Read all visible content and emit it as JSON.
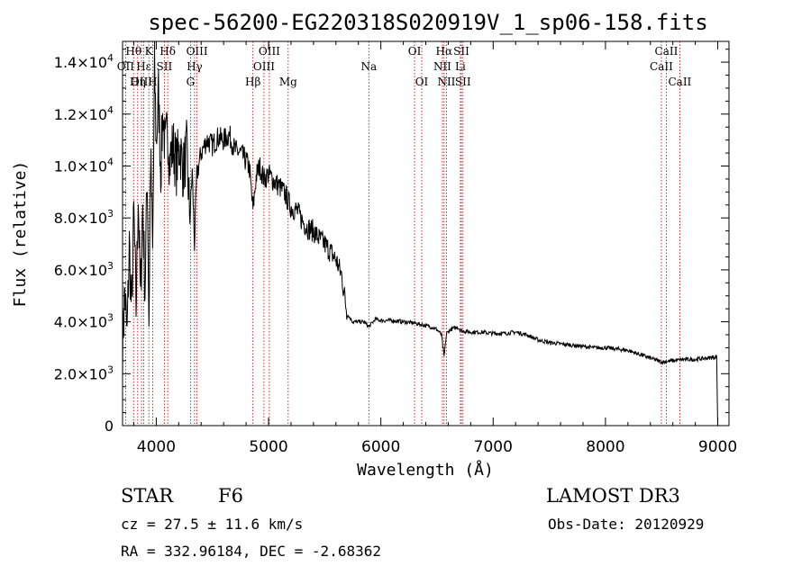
{
  "chart_data": {
    "type": "line",
    "title": "spec-56200-EG220318S020919V_1_sp06-158.fits",
    "xlabel": "Wavelength (Å)",
    "ylabel": "Flux (relative)",
    "xlim": [
      3700,
      9100
    ],
    "ylim": [
      0,
      14800
    ],
    "xticks": [
      4000,
      5000,
      6000,
      7000,
      8000,
      9000
    ],
    "yticks": [
      {
        "value": 0,
        "mant": "0",
        "exp": ""
      },
      {
        "value": 2000,
        "mant": "2.0×10",
        "exp": "3"
      },
      {
        "value": 4000,
        "mant": "4.0×10",
        "exp": "3"
      },
      {
        "value": 6000,
        "mant": "6.0×10",
        "exp": "3"
      },
      {
        "value": 8000,
        "mant": "8.0×10",
        "exp": "3"
      },
      {
        "value": 10000,
        "mant": "1.0×10",
        "exp": "4"
      },
      {
        "value": 12000,
        "mant": "1.2×10",
        "exp": "4"
      },
      {
        "value": 14000,
        "mant": "1.4×10",
        "exp": "4"
      }
    ],
    "series": [
      {
        "name": "spectrum",
        "points": [
          [
            3700,
            3000
          ],
          [
            3720,
            5200
          ],
          [
            3740,
            3400
          ],
          [
            3760,
            7000
          ],
          [
            3780,
            4300
          ],
          [
            3800,
            8200
          ],
          [
            3820,
            4500
          ],
          [
            3840,
            9000
          ],
          [
            3860,
            4800
          ],
          [
            3880,
            8500
          ],
          [
            3900,
            5200
          ],
          [
            3920,
            9800
          ],
          [
            3935,
            4000
          ],
          [
            3950,
            10500
          ],
          [
            3968,
            6500
          ],
          [
            3985,
            13800
          ],
          [
            4000,
            10800
          ],
          [
            4020,
            12800
          ],
          [
            4040,
            9800
          ],
          [
            4060,
            12200
          ],
          [
            4080,
            10500
          ],
          [
            4100,
            11500
          ],
          [
            4120,
            10200
          ],
          [
            4150,
            10800
          ],
          [
            4180,
            10000
          ],
          [
            4210,
            10800
          ],
          [
            4240,
            9800
          ],
          [
            4270,
            10600
          ],
          [
            4300,
            8000
          ],
          [
            4320,
            9800
          ],
          [
            4340,
            7000
          ],
          [
            4360,
            9600
          ],
          [
            4400,
            10500
          ],
          [
            4450,
            11000
          ],
          [
            4500,
            10800
          ],
          [
            4550,
            11100
          ],
          [
            4600,
            11000
          ],
          [
            4650,
            11200
          ],
          [
            4700,
            10600
          ],
          [
            4750,
            10500
          ],
          [
            4800,
            10200
          ],
          [
            4830,
            9900
          ],
          [
            4861,
            8300
          ],
          [
            4890,
            9600
          ],
          [
            4920,
            10000
          ],
          [
            4960,
            9500
          ],
          [
            5000,
            9700
          ],
          [
            5050,
            9400
          ],
          [
            5100,
            9200
          ],
          [
            5150,
            8900
          ],
          [
            5200,
            8400
          ],
          [
            5250,
            8300
          ],
          [
            5300,
            7900
          ],
          [
            5350,
            7600
          ],
          [
            5400,
            7500
          ],
          [
            5450,
            7200
          ],
          [
            5500,
            7000
          ],
          [
            5550,
            6700
          ],
          [
            5600,
            6400
          ],
          [
            5650,
            5800
          ],
          [
            5700,
            4300
          ],
          [
            5750,
            4000
          ],
          [
            5800,
            4000
          ],
          [
            5850,
            4000
          ],
          [
            5893,
            3800
          ],
          [
            5950,
            4100
          ],
          [
            6000,
            4050
          ],
          [
            6100,
            4050
          ],
          [
            6200,
            4000
          ],
          [
            6300,
            3950
          ],
          [
            6400,
            3850
          ],
          [
            6450,
            3800
          ],
          [
            6500,
            3700
          ],
          [
            6540,
            3500
          ],
          [
            6563,
            2650
          ],
          [
            6585,
            3550
          ],
          [
            6620,
            3700
          ],
          [
            6680,
            3800
          ],
          [
            6720,
            3650
          ],
          [
            6800,
            3600
          ],
          [
            6900,
            3600
          ],
          [
            7000,
            3550
          ],
          [
            7100,
            3550
          ],
          [
            7200,
            3600
          ],
          [
            7300,
            3500
          ],
          [
            7400,
            3300
          ],
          [
            7500,
            3200
          ],
          [
            7600,
            3150
          ],
          [
            7700,
            3100
          ],
          [
            7800,
            3050
          ],
          [
            7900,
            3000
          ],
          [
            8000,
            3000
          ],
          [
            8100,
            2950
          ],
          [
            8200,
            2900
          ],
          [
            8300,
            2750
          ],
          [
            8400,
            2600
          ],
          [
            8500,
            2450
          ],
          [
            8600,
            2500
          ],
          [
            8700,
            2550
          ],
          [
            8800,
            2550
          ],
          [
            8900,
            2600
          ],
          [
            8990,
            2650
          ],
          [
            9000,
            0
          ]
        ]
      }
    ],
    "line_markers": [
      {
        "label": "Hθ",
        "wavelength": 3798,
        "row": 1
      },
      {
        "label": "OII",
        "wavelength": 3727,
        "row": 2
      },
      {
        "label": "OIII",
        "wavelength": 3869,
        "row": 3
      },
      {
        "label": "K",
        "wavelength": 3934,
        "row": 1
      },
      {
        "label": "Hε",
        "wavelength": 3889,
        "row": 2
      },
      {
        "label": "Hη",
        "wavelength": 3835,
        "row": 3
      },
      {
        "label": "H",
        "wavelength": 3968,
        "row": 3
      },
      {
        "label": "SII",
        "wavelength": 4072,
        "row": 2
      },
      {
        "label": "Hδ",
        "wavelength": 4102,
        "row": 1
      },
      {
        "label": "OIII",
        "wavelength": 4363,
        "row": 1
      },
      {
        "label": "Hγ",
        "wavelength": 4341,
        "row": 2
      },
      {
        "label": "G",
        "wavelength": 4305,
        "row": 3
      },
      {
        "label": "Hβ",
        "wavelength": 4861,
        "row": 3
      },
      {
        "label": "OIII",
        "wavelength": 5007,
        "row": 1
      },
      {
        "label": "OIII",
        "wavelength": 4959,
        "row": 2
      },
      {
        "label": "Mg",
        "wavelength": 5175,
        "row": 3
      },
      {
        "label": "Na",
        "wavelength": 5893,
        "row": 2
      },
      {
        "label": "OI",
        "wavelength": 6300,
        "row": 1
      },
      {
        "label": "OI",
        "wavelength": 6364,
        "row": 3
      },
      {
        "label": "Hα",
        "wavelength": 6563,
        "row": 1
      },
      {
        "label": "NII",
        "wavelength": 6548,
        "row": 2
      },
      {
        "label": "NII",
        "wavelength": 6584,
        "row": 3
      },
      {
        "label": "SII",
        "wavelength": 6717,
        "row": 1
      },
      {
        "label": "Li",
        "wavelength": 6708,
        "row": 2
      },
      {
        "label": "SII",
        "wavelength": 6731,
        "row": 3
      },
      {
        "label": "CaII",
        "wavelength": 8542,
        "row": 1
      },
      {
        "label": "CaII",
        "wavelength": 8498,
        "row": 2
      },
      {
        "label": "CaII",
        "wavelength": 8662,
        "row": 3
      }
    ]
  },
  "info": {
    "class": "STAR",
    "subclass": "F6",
    "survey": "LAMOST DR3",
    "cz": "cz = 27.5 ± 11.6 km/s",
    "obs_date": "Obs-Date: 20120929",
    "coords": "RA = 332.96184, DEC =  -2.68362"
  }
}
